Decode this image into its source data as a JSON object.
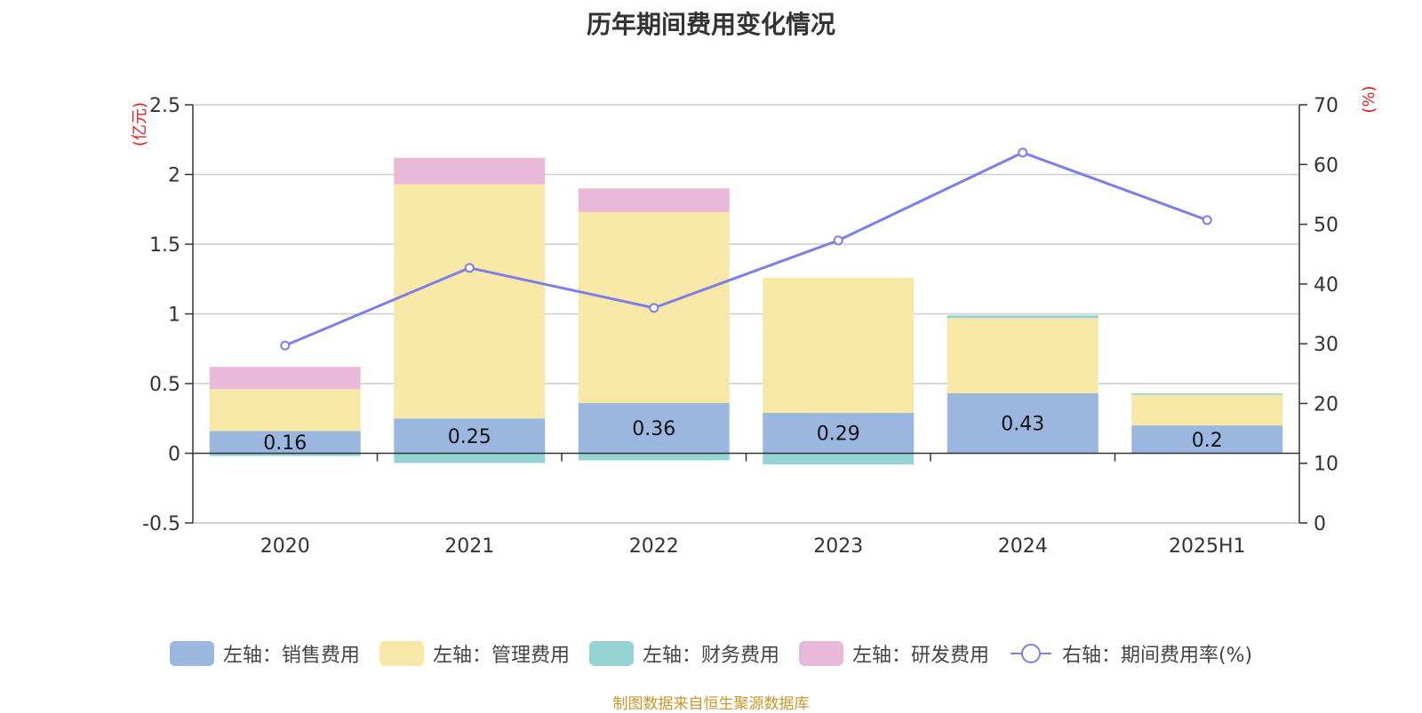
{
  "chart_data": {
    "type": "bar",
    "title": "历年期间费用变化情况",
    "categories": [
      "2020",
      "2021",
      "2022",
      "2023",
      "2024",
      "2025H1"
    ],
    "y_left": {
      "unit_label": "(亿元)",
      "min": -0.5,
      "max": 2.5,
      "ticks": [
        -0.5,
        0,
        0.5,
        1,
        1.5,
        2,
        2.5
      ],
      "tick_labels": [
        "-0.5",
        "0",
        "0.5",
        "1",
        "1.5",
        "2",
        "2.5"
      ]
    },
    "y_right": {
      "unit_label": "(%)",
      "min": 0,
      "max": 70,
      "ticks": [
        0,
        10,
        20,
        30,
        40,
        50,
        60,
        70
      ],
      "tick_labels": [
        "0",
        "10",
        "20",
        "30",
        "40",
        "50",
        "60",
        "70"
      ]
    },
    "series": [
      {
        "name": "左轴：销售费用",
        "type": "bar",
        "axis": "left",
        "color": "#9bb7e0",
        "values": [
          0.16,
          0.25,
          0.36,
          0.29,
          0.43,
          0.2
        ],
        "labels": [
          "0.16",
          "0.25",
          "0.36",
          "0.29",
          "0.43",
          "0.2"
        ]
      },
      {
        "name": "左轴：管理费用",
        "type": "bar",
        "axis": "left",
        "color": "#f8e8a8",
        "values": [
          0.3,
          1.68,
          1.37,
          0.97,
          0.54,
          0.22
        ]
      },
      {
        "name": "左轴：财务费用",
        "type": "bar",
        "axis": "left",
        "color": "#95d3d4",
        "values": [
          -0.02,
          -0.07,
          -0.05,
          -0.08,
          0.02,
          0.01
        ]
      },
      {
        "name": "左轴：研发费用",
        "type": "bar",
        "axis": "left",
        "color": "#e8b9da",
        "values": [
          0.16,
          0.19,
          0.17,
          0,
          0,
          0
        ]
      },
      {
        "name": "右轴：期间费用率(%)",
        "type": "line",
        "axis": "right",
        "color": "#7b7fe8",
        "values": [
          29.7,
          42.7,
          36.0,
          47.3,
          62.0,
          50.7
        ]
      }
    ],
    "grid": true,
    "legend_position": "bottom"
  },
  "source": "制图数据来自恒生聚源数据库"
}
